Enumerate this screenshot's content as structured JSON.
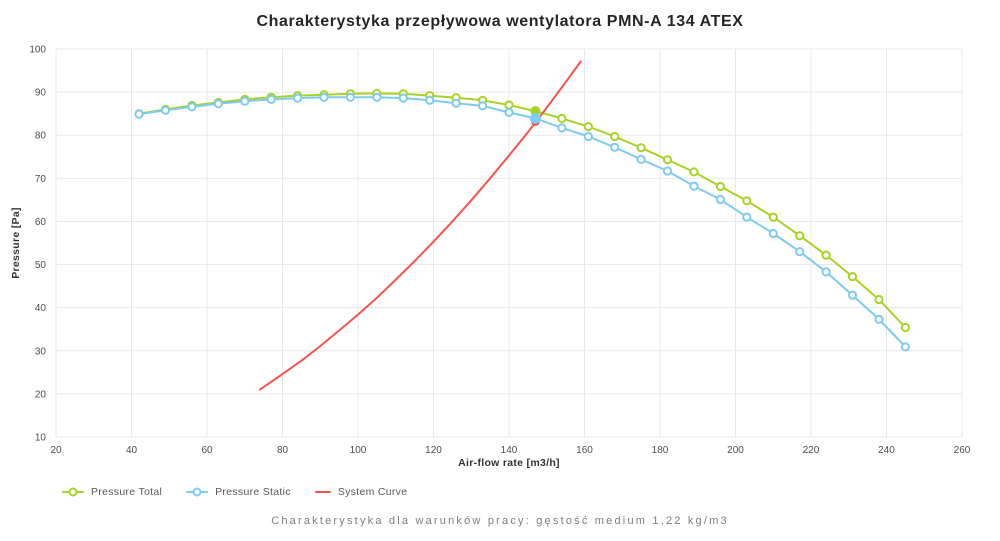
{
  "title": "Charakterystyka przepływowa wentylatora PMN-A 134 ATEX",
  "subtitle": "Charakterystyka dla warunków pracy: gęstość medium 1,22 kg/m3",
  "chart_data": {
    "type": "line",
    "title": "Charakterystyka przepływowa wentylatora PMN-A 134 ATEX",
    "xlabel": "Air-flow rate [m3/h]",
    "ylabel": "Pressure [Pa]",
    "xlim": [
      20,
      260
    ],
    "ylim": [
      10,
      100
    ],
    "xticks": [
      20,
      40,
      60,
      80,
      100,
      120,
      140,
      160,
      180,
      200,
      220,
      240,
      260
    ],
    "yticks": [
      10,
      20,
      30,
      40,
      50,
      60,
      70,
      80,
      90,
      100
    ],
    "grid": true,
    "legend_position": "bottom-left",
    "x": [
      42,
      49,
      56,
      63,
      70,
      77,
      84,
      91,
      98,
      105,
      112,
      119,
      126,
      133,
      140,
      147,
      154,
      161,
      168,
      175,
      182,
      189,
      196,
      203,
      210,
      217,
      224,
      231,
      238,
      245
    ],
    "series": [
      {
        "name": "Pressure Total",
        "type": "line",
        "marker": "open-circle",
        "color": "#a8d324",
        "values": [
          85.0,
          86.0,
          86.9,
          87.6,
          88.3,
          88.8,
          89.2,
          89.4,
          89.6,
          89.7,
          89.6,
          89.2,
          88.7,
          88.1,
          87.0,
          85.6,
          83.9,
          82.0,
          79.7,
          77.1,
          74.3,
          71.5,
          68.1,
          64.8,
          61.0,
          56.7,
          52.2,
          47.2,
          41.9,
          35.4
        ]
      },
      {
        "name": "Pressure Static",
        "type": "line",
        "marker": "open-circle",
        "color": "#7dcbf0",
        "values": [
          84.9,
          85.8,
          86.6,
          87.3,
          87.9,
          88.3,
          88.6,
          88.8,
          88.8,
          88.8,
          88.6,
          88.1,
          87.4,
          86.8,
          85.3,
          83.9,
          81.7,
          79.7,
          77.2,
          74.4,
          71.7,
          68.2,
          65.1,
          61.0,
          57.2,
          53.0,
          48.3,
          42.9,
          37.3,
          30.9
        ]
      },
      {
        "name": "System Curve",
        "type": "line",
        "marker": "none",
        "color": "#f9524e",
        "points": [
          [
            74,
            21.0
          ],
          [
            80,
            24.6
          ],
          [
            85,
            27.7
          ],
          [
            90,
            31.1
          ],
          [
            95,
            34.7
          ],
          [
            100,
            38.4
          ],
          [
            105,
            42.3
          ],
          [
            110,
            46.5
          ],
          [
            115,
            50.8
          ],
          [
            120,
            55.3
          ],
          [
            125,
            60.0
          ],
          [
            130,
            64.9
          ],
          [
            135,
            70.0
          ],
          [
            140,
            75.3
          ],
          [
            145,
            80.7
          ],
          [
            150,
            86.4
          ],
          [
            155,
            92.3
          ],
          [
            159,
            97.1
          ]
        ]
      }
    ],
    "operating_point": {
      "airflow": 147,
      "pressure_total": 85.6,
      "pressure_static": 83.9,
      "system_pressure": 83.2
    },
    "colors": {
      "grid": "#e8e8e8",
      "background": "#ffffff"
    }
  }
}
